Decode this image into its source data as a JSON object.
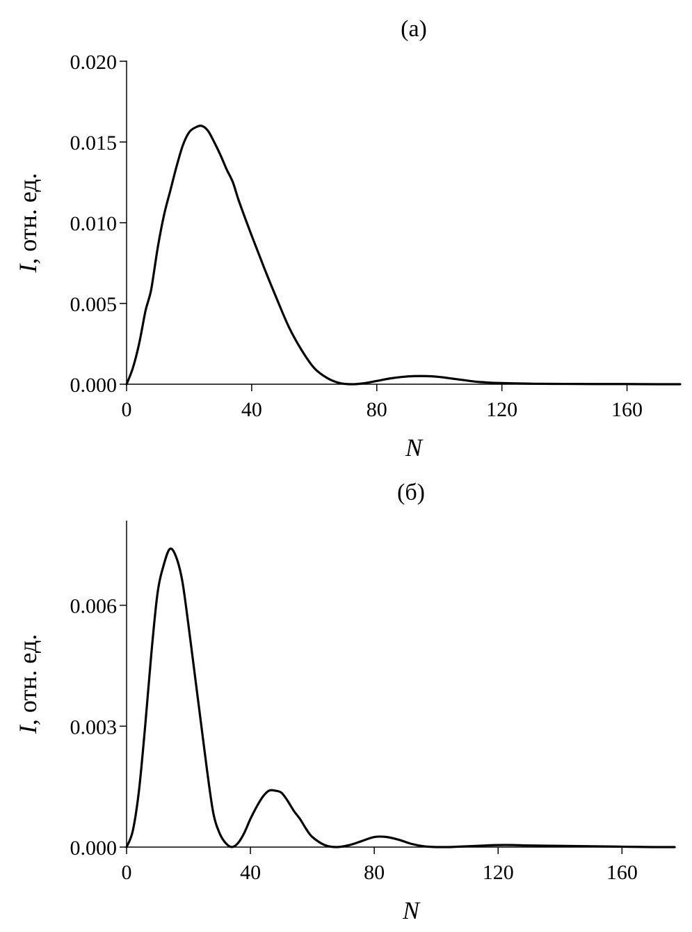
{
  "chart_data": [
    {
      "type": "line",
      "title": "(a)",
      "xlabel": "N",
      "ylabel": "I, отн. ед.",
      "xlim": [
        0,
        177
      ],
      "ylim": [
        0,
        0.02
      ],
      "xticks": [
        0,
        40,
        80,
        120,
        160
      ],
      "yticks": [
        0,
        0.005,
        0.01,
        0.015,
        0.02
      ],
      "xtick_labels": [
        "0",
        "40",
        "80",
        "120",
        "160"
      ],
      "ytick_labels": [
        "0.000",
        "0.005",
        "0.010",
        "0.015",
        "0.020"
      ],
      "grid": false,
      "series": [
        {
          "color": "#000000",
          "x": [
            0,
            2,
            4,
            6,
            7,
            8,
            10,
            12,
            14,
            16,
            18,
            20,
            22,
            24,
            26,
            28,
            30,
            32,
            34,
            36,
            40,
            44,
            48,
            52,
            56,
            60,
            64,
            68,
            72,
            76,
            80,
            84,
            88,
            92,
            96,
            100,
            104,
            108,
            112,
            116,
            120,
            125,
            130,
            140,
            150,
            160,
            170,
            177
          ],
          "y": [
            0.0,
            0.001,
            0.0025,
            0.0045,
            0.0052,
            0.006,
            0.0085,
            0.0105,
            0.012,
            0.0135,
            0.0148,
            0.0156,
            0.0159,
            0.016,
            0.0157,
            0.015,
            0.0142,
            0.0133,
            0.0125,
            0.0113,
            0.0092,
            0.0072,
            0.0053,
            0.0035,
            0.0021,
            0.001,
            0.0004,
            8e-05,
            0.0,
            6e-05,
            0.0002,
            0.00035,
            0.00045,
            0.0005,
            0.0005,
            0.00045,
            0.00035,
            0.00025,
            0.00015,
            0.0001,
            7e-05,
            5e-05,
            3e-05,
            2e-05,
            1e-05,
            1e-05,
            0.0,
            0.0
          ]
        }
      ]
    },
    {
      "type": "line",
      "title": "(б)",
      "xlabel": "N",
      "ylabel": "I, отн. ед.",
      "xlim": [
        0,
        177
      ],
      "ylim": [
        0,
        0.0081
      ],
      "xticks": [
        0,
        40,
        80,
        120,
        160
      ],
      "yticks": [
        0,
        0.003,
        0.006
      ],
      "xtick_labels": [
        "0",
        "40",
        "80",
        "120",
        "160"
      ],
      "ytick_labels": [
        "0.000",
        "0.003",
        "0.006"
      ],
      "grid": false,
      "series": [
        {
          "color": "#000000",
          "x": [
            0,
            2,
            4,
            6,
            8,
            10,
            12,
            14,
            16,
            18,
            20,
            22,
            24,
            26,
            28,
            30,
            32,
            34,
            36,
            38,
            40,
            42,
            44,
            46,
            48,
            50,
            52,
            54,
            56,
            58,
            60,
            64,
            68,
            72,
            76,
            80,
            84,
            88,
            92,
            96,
            100,
            104,
            110,
            116,
            120,
            125,
            130,
            140,
            150,
            160,
            170,
            177
          ],
          "y": [
            0.0,
            0.0004,
            0.0014,
            0.003,
            0.0048,
            0.0063,
            0.007,
            0.0074,
            0.0072,
            0.0066,
            0.0055,
            0.0043,
            0.0031,
            0.0019,
            0.00085,
            0.00035,
            0.0001,
            0.0,
            0.0001,
            0.00035,
            0.0007,
            0.001,
            0.00125,
            0.0014,
            0.0014,
            0.00135,
            0.00115,
            0.0009,
            0.0007,
            0.00045,
            0.00025,
            5e-05,
            0.0,
            5e-05,
            0.00015,
            0.00025,
            0.00025,
            0.00018,
            8e-05,
            2e-05,
            0.0,
            0.0,
            2e-05,
            4e-05,
            5e-05,
            5e-05,
            4e-05,
            3e-05,
            2e-05,
            1e-05,
            0.0,
            0.0
          ]
        }
      ]
    }
  ]
}
